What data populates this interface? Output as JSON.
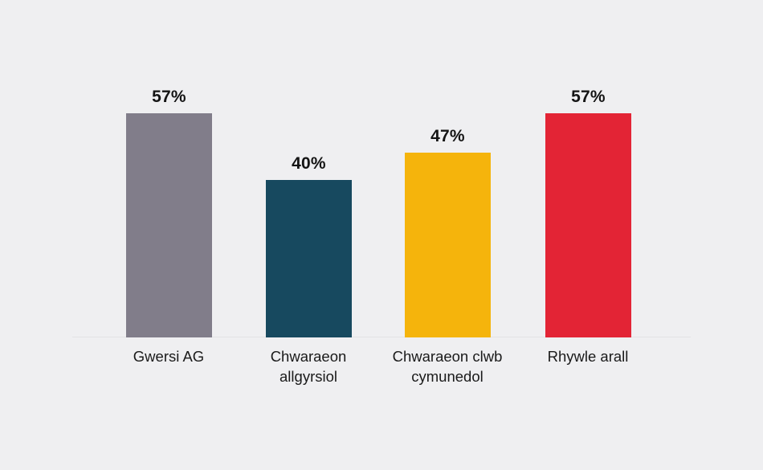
{
  "chart_data": {
    "type": "bar",
    "title": "",
    "xlabel": "",
    "ylabel": "",
    "categories": [
      "Gwersi AG",
      "Chwaraeon allgyrsiol",
      "Chwaraeon clwb cymunedol",
      "Rhywle arall"
    ],
    "values": [
      57,
      40,
      47,
      57
    ],
    "value_labels": [
      "57%",
      "40%",
      "47%",
      "57%"
    ],
    "bar_colors": [
      "#817D8A",
      "#17495F",
      "#F5B40C",
      "#E32435"
    ],
    "ylim": [
      0,
      60
    ],
    "grid": false,
    "legend": false,
    "background_color": "#EFEFF1",
    "baseline_color": "#E2E2E4",
    "text_color": "#1A1A1A"
  }
}
